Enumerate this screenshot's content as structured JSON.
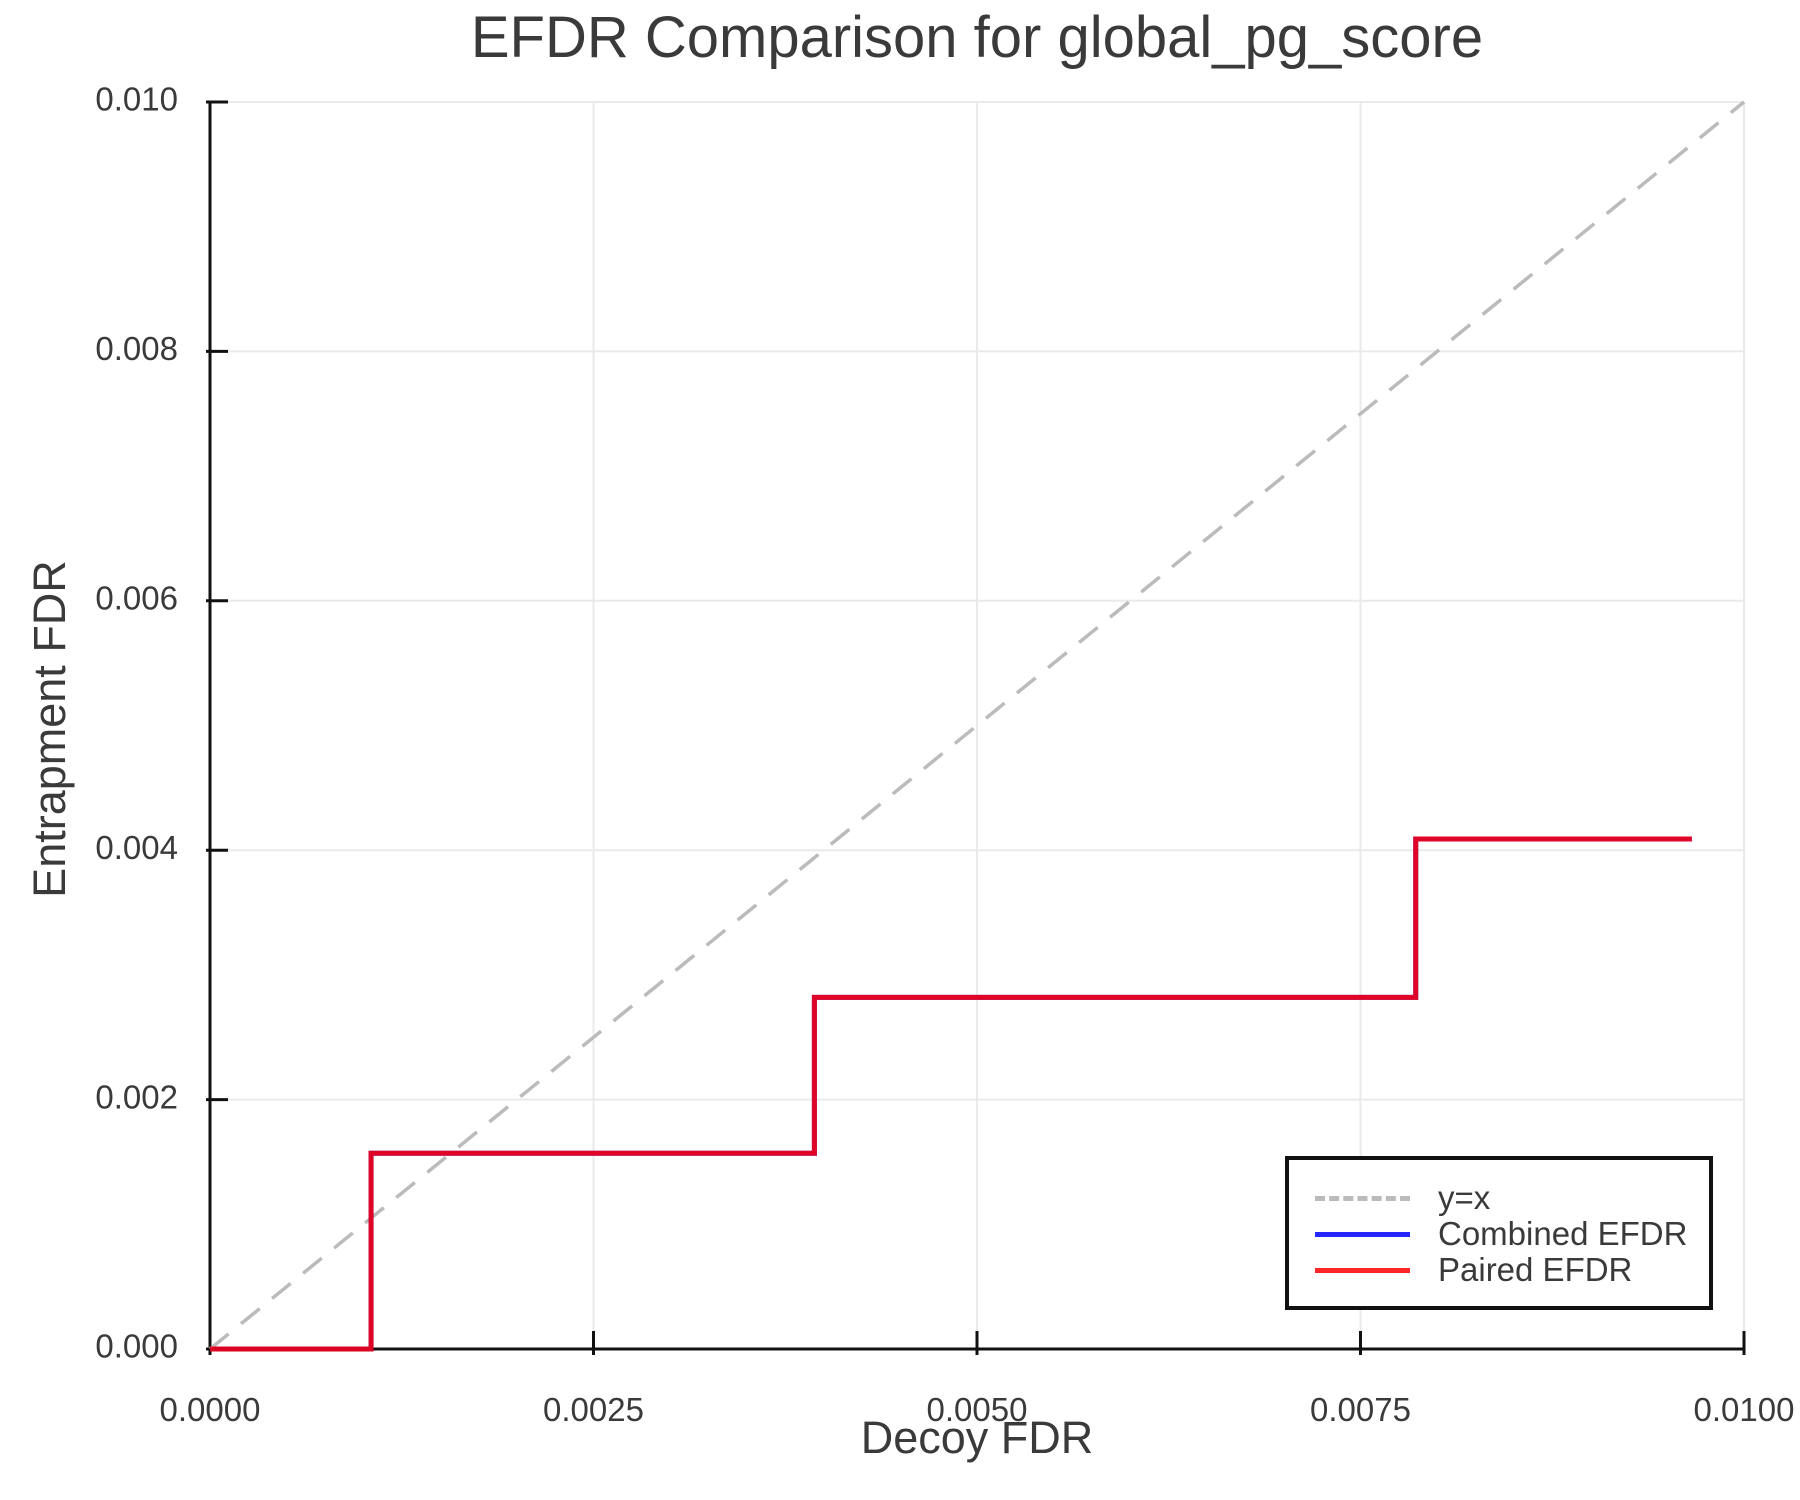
{
  "title": "EFDR Comparison for global_pg_score",
  "axes": {
    "x_label": "Decoy FDR",
    "y_label": "Entrapment FDR",
    "x_tick_labels": [
      "0.0000",
      "0.0025",
      "0.0050",
      "0.0075",
      "0.0100"
    ],
    "y_tick_labels": [
      "0.000",
      "0.002",
      "0.004",
      "0.006",
      "0.008",
      "0.010"
    ]
  },
  "legend": {
    "items": [
      {
        "label": "y=x",
        "color": "#bbbbbb",
        "style": "dashed"
      },
      {
        "label": "Combined EFDR",
        "color": "#0000ff",
        "style": "solid"
      },
      {
        "label": "Paired EFDR",
        "color": "#ff0000",
        "style": "solid"
      }
    ]
  },
  "colors": {
    "text": "#3a3a3a",
    "grid": "#eaeaea",
    "spine": "#111111",
    "background": "#ffffff"
  },
  "chart_data": {
    "type": "line",
    "title": "EFDR Comparison for global_pg_score",
    "xlabel": "Decoy FDR",
    "ylabel": "Entrapment FDR",
    "xlim": [
      0.0,
      0.01
    ],
    "ylim": [
      0.0,
      0.01
    ],
    "x_ticks": [
      0.0,
      0.0025,
      0.005,
      0.0075,
      0.01
    ],
    "y_ticks": [
      0.0,
      0.002,
      0.004,
      0.006,
      0.008,
      0.01
    ],
    "grid": true,
    "legend_position": "lower right",
    "series": [
      {
        "name": "y=x",
        "style": "dashed",
        "color": "#bbbbbb",
        "opacity": 1.0,
        "width": 3.5,
        "x": [
          0.0,
          0.01
        ],
        "y": [
          0.0,
          0.01
        ]
      },
      {
        "name": "Combined EFDR",
        "style": "solid",
        "color": "#0000ff",
        "opacity": 0.85,
        "width": 5,
        "x": [
          0.0,
          0.00105,
          0.00105,
          0.00394,
          0.00394,
          0.00786,
          0.00786,
          0.00966
        ],
        "y": [
          0.0,
          0.0,
          0.00157,
          0.00157,
          0.00282,
          0.00282,
          0.00409,
          0.00409
        ]
      },
      {
        "name": "Paired EFDR",
        "style": "solid",
        "color": "#ff0000",
        "opacity": 0.85,
        "width": 5,
        "x": [
          0.0,
          0.00105,
          0.00105,
          0.00394,
          0.00394,
          0.00786,
          0.00786,
          0.00966
        ],
        "y": [
          0.0,
          0.0,
          0.00157,
          0.00157,
          0.00282,
          0.00282,
          0.00409,
          0.00409
        ]
      }
    ]
  }
}
